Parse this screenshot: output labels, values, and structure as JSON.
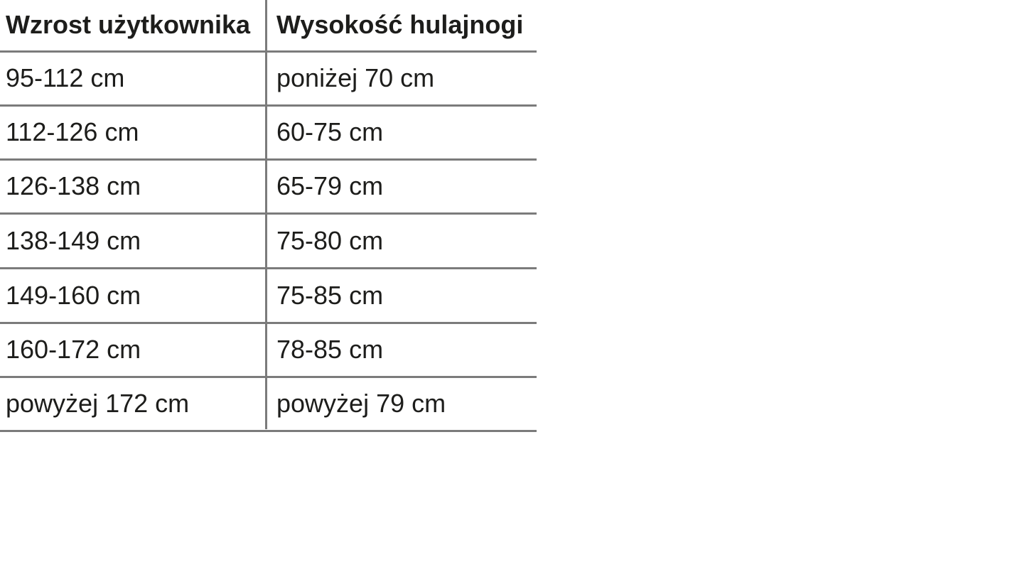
{
  "chart_data": {
    "type": "table",
    "columns": [
      "Wzrost użytkownika",
      "Wysokość hulajnogi"
    ],
    "rows": [
      [
        "95-112 cm",
        "poniżej 70 cm"
      ],
      [
        "112-126 cm",
        "60-75 cm"
      ],
      [
        "126-138 cm",
        "65-79 cm"
      ],
      [
        "138-149 cm",
        "75-80 cm"
      ],
      [
        "149-160 cm",
        "75-85 cm"
      ],
      [
        "160-172 cm",
        "78-85 cm"
      ],
      [
        "powyżej 172 cm",
        "powyżej 79 cm"
      ]
    ],
    "layout": {
      "header_bold": true,
      "outer_border": false,
      "column_divider": true
    }
  },
  "colors": {
    "text": "#1d1d1b",
    "grid_line": "#7b7b7b",
    "background": "#ffffff"
  }
}
